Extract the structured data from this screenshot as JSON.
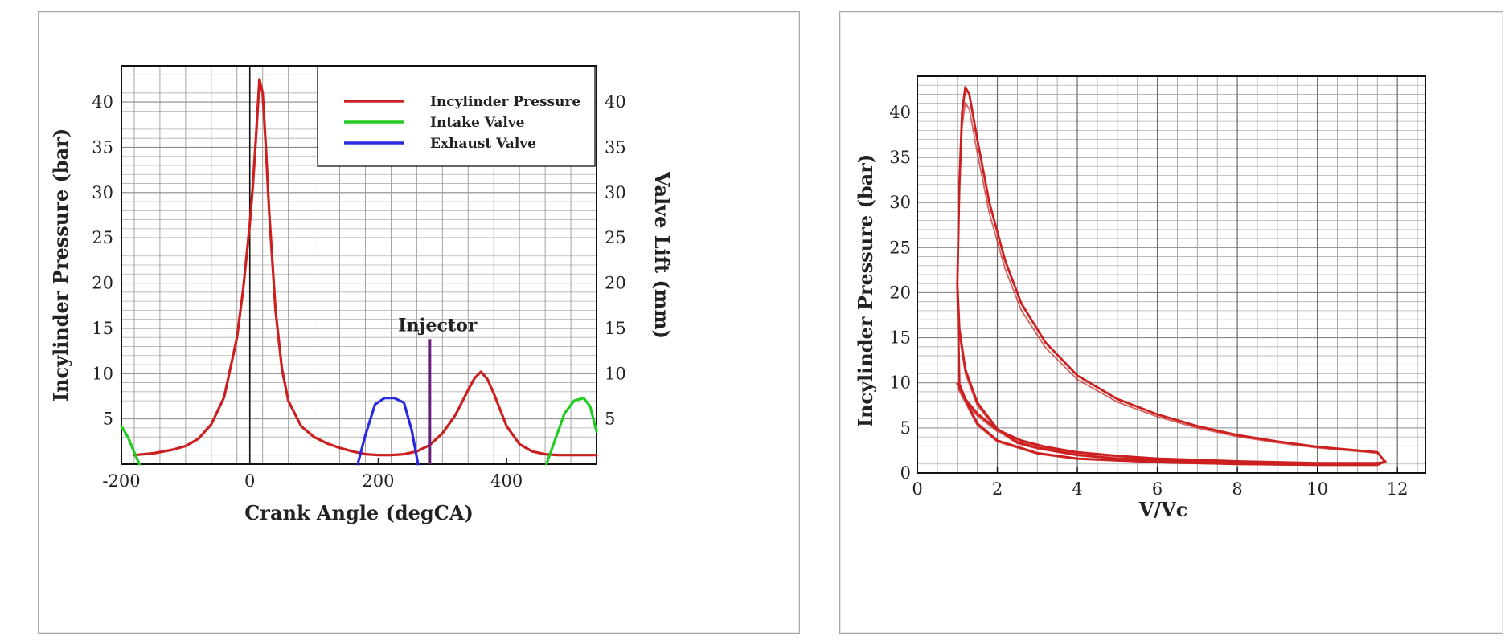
{
  "chart_data": [
    {
      "type": "line",
      "xlabel": "Crank Angle (degCA)",
      "ylabel": "Incylinder Pressure (bar)",
      "y2label": "Valve Lift (mm)",
      "xlim": [
        -200,
        540
      ],
      "ylim": [
        0,
        44
      ],
      "y2lim": [
        0,
        44
      ],
      "xticks": [
        -200,
        0,
        200,
        400
      ],
      "yticks": [
        5,
        10,
        15,
        20,
        25,
        30,
        35,
        40
      ],
      "y2ticks": [
        5,
        10,
        15,
        20,
        25,
        30,
        35,
        40
      ],
      "grid": true,
      "legend_position": "top-right",
      "series": [
        {
          "name": "Incylinder Pressure",
          "color": "#cc1f1f",
          "axis": "left",
          "x": [
            -180,
            -150,
            -120,
            -100,
            -80,
            -60,
            -40,
            -20,
            -10,
            0,
            5,
            10,
            15,
            20,
            25,
            30,
            40,
            50,
            60,
            80,
            100,
            120,
            140,
            160,
            180,
            200,
            220,
            240,
            260,
            280,
            300,
            320,
            340,
            350,
            360,
            370,
            380,
            400,
            420,
            440,
            460,
            480,
            500,
            520,
            540
          ],
          "y": [
            1.0,
            1.2,
            1.6,
            2.0,
            2.8,
            4.4,
            7.4,
            14.0,
            19.5,
            26.5,
            31.0,
            36.5,
            42.5,
            41.0,
            35.0,
            28.0,
            17.0,
            10.5,
            7.0,
            4.2,
            3.0,
            2.3,
            1.8,
            1.4,
            1.1,
            1.0,
            1.0,
            1.1,
            1.4,
            2.1,
            3.4,
            5.4,
            8.2,
            9.5,
            10.2,
            9.4,
            7.8,
            4.2,
            2.2,
            1.4,
            1.1,
            1.0,
            1.0,
            1.0,
            1.0
          ]
        },
        {
          "name": "Intake Valve",
          "color": "#22cc22",
          "axis": "right",
          "segments": [
            {
              "x": [
                -200,
                -190,
                -180,
                -172
              ],
              "y": [
                4.2,
                3.0,
                1.3,
                0
              ]
            },
            {
              "x": [
                462,
                475,
                490,
                505,
                520,
                530,
                540
              ],
              "y": [
                0,
                2.6,
                5.6,
                7.0,
                7.3,
                6.4,
                3.6
              ]
            }
          ]
        },
        {
          "name": "Exhaust Valve",
          "color": "#2a2ae0",
          "axis": "right",
          "x": [
            168,
            180,
            195,
            210,
            225,
            240,
            252,
            262
          ],
          "y": [
            0,
            3.2,
            6.6,
            7.3,
            7.3,
            6.8,
            3.8,
            0
          ]
        }
      ],
      "annotations": [
        {
          "label": "Injector",
          "x": 280,
          "y_from": 0,
          "y_to": 13.8,
          "color": "#6a1f7a"
        }
      ]
    },
    {
      "type": "line",
      "xlabel": "V/Vc",
      "ylabel": "Incylinder Pressure (bar)",
      "xlim": [
        0,
        12.7
      ],
      "ylim": [
        0,
        44
      ],
      "xticks": [
        0,
        2,
        4,
        6,
        8,
        10,
        12
      ],
      "yticks": [
        0,
        5,
        10,
        15,
        20,
        25,
        30,
        35,
        40
      ],
      "grid": true,
      "series": [
        {
          "name": "",
          "color": "#cc1f1f",
          "x": [
            1.0,
            1.05,
            1.12,
            1.2,
            1.3,
            1.5,
            1.8,
            2.2,
            2.6,
            3.2,
            4.0,
            5.0,
            6.0,
            7.0,
            8.0,
            9.0,
            10.0,
            11.0,
            11.5,
            11.7,
            11.5,
            10.0,
            8.0,
            6.0,
            5.0,
            4.0,
            3.0,
            2.5,
            2.0,
            1.5,
            1.2,
            1.05,
            1.0,
            1.05,
            1.2,
            1.5,
            2.0,
            2.6,
            3.2,
            4.0,
            5.0,
            6.0,
            8.0,
            10.0,
            11.5,
            11.7,
            11.5,
            10.0,
            8.0,
            6.0,
            4.0,
            3.0,
            2.0,
            1.5,
            1.0
          ],
          "y": [
            21.0,
            32.0,
            40.0,
            42.8,
            42.0,
            37.0,
            30.0,
            23.5,
            18.8,
            14.5,
            10.8,
            8.2,
            6.5,
            5.2,
            4.2,
            3.5,
            2.9,
            2.5,
            2.3,
            1.2,
            1.1,
            1.1,
            1.2,
            1.4,
            1.6,
            2.0,
            2.8,
            3.4,
            4.9,
            7.8,
            11.5,
            16.0,
            21.0,
            9.9,
            8.2,
            6.6,
            4.8,
            3.6,
            2.9,
            2.3,
            1.9,
            1.6,
            1.3,
            1.1,
            1.0,
            1.3,
            0.9,
            0.9,
            1.0,
            1.2,
            1.6,
            2.2,
            3.6,
            5.5,
            9.9
          ]
        }
      ]
    }
  ]
}
